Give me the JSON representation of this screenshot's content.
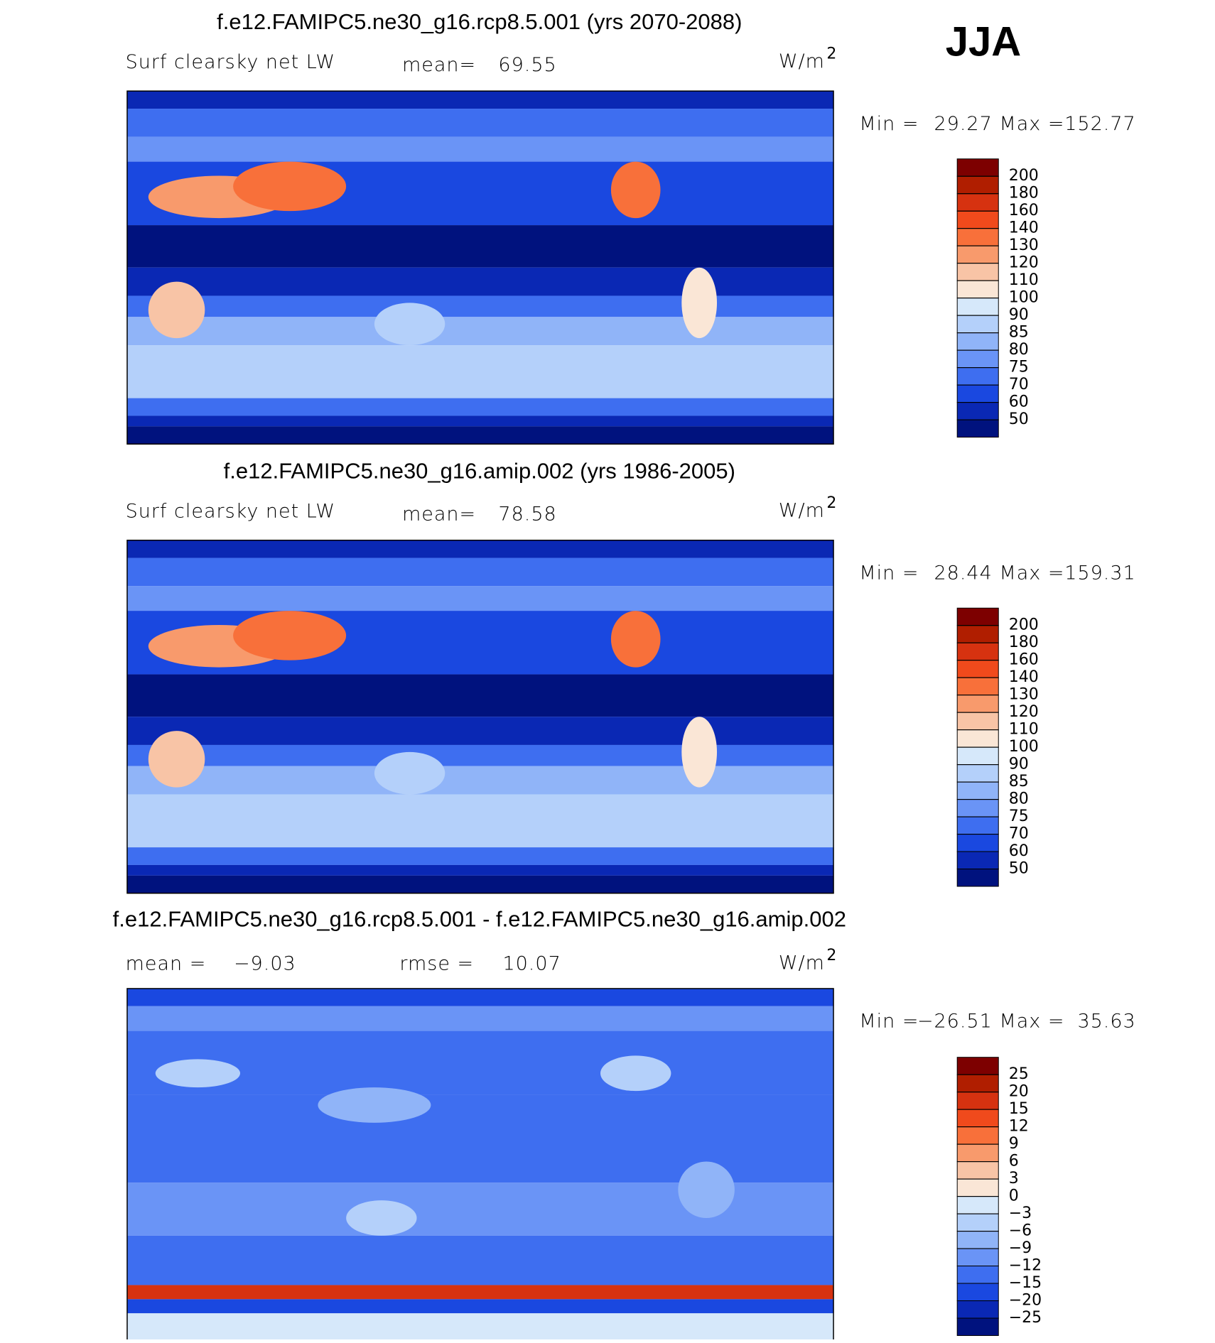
{
  "figure_label": "JJA",
  "panels": [
    {
      "title": "f.e12.FAMIPC5.ne30_g16.rcp8.5.001 (yrs 2070-2088)",
      "variable": "Surf clearsky net LW",
      "mean_label": "mean=",
      "mean": 69.55,
      "units": "W/m",
      "units_power": 2,
      "min_label": "Min =",
      "min": 29.27,
      "max_label": "Max =",
      "max": 152.77,
      "levels": [
        200,
        180,
        160,
        140,
        130,
        120,
        110,
        100,
        90,
        85,
        80,
        75,
        70,
        60,
        50
      ],
      "colors": [
        "#7d0000",
        "#b01e00",
        "#d63210",
        "#f04a1c",
        "#f8703a",
        "#f89a6c",
        "#f8c4a6",
        "#fae6d6",
        "#d6e8fa",
        "#b4d0fa",
        "#90b4f8",
        "#6a94f6",
        "#3e6ef0",
        "#1a48e0",
        "#0a28b4",
        "#00127e"
      ]
    },
    {
      "title": "f.e12.FAMIPC5.ne30_g16.amip.002 (yrs 1986-2005)",
      "variable": "Surf clearsky net LW",
      "mean_label": "mean=",
      "mean": 78.58,
      "units": "W/m",
      "units_power": 2,
      "min_label": "Min =",
      "min": 28.44,
      "max_label": "Max =",
      "max": 159.31,
      "levels": [
        200,
        180,
        160,
        140,
        130,
        120,
        110,
        100,
        90,
        85,
        80,
        75,
        70,
        60,
        50
      ],
      "colors": [
        "#7d0000",
        "#b01e00",
        "#d63210",
        "#f04a1c",
        "#f8703a",
        "#f89a6c",
        "#f8c4a6",
        "#fae6d6",
        "#d6e8fa",
        "#b4d0fa",
        "#90b4f8",
        "#6a94f6",
        "#3e6ef0",
        "#1a48e0",
        "#0a28b4",
        "#00127e"
      ]
    },
    {
      "title": "f.e12.FAMIPC5.ne30_g16.rcp8.5.001 - f.e12.FAMIPC5.ne30_g16.amip.002",
      "mean_label": "mean =",
      "mean": {
        "value": -9.03,
        "label": "−9.03"
      },
      "rmse_label": "rmse =",
      "rmse": 10.07,
      "units": "W/m",
      "units_power": 2,
      "min_label": "Min =",
      "min": {
        "value": -26.51,
        "label": "−26.51"
      },
      "max_label": "Max =",
      "max": 35.63,
      "levels": [
        25,
        20,
        15,
        12,
        9,
        6,
        3,
        0,
        {
          "value": -3,
          "label": "−3"
        },
        {
          "value": -6,
          "label": "−6"
        },
        {
          "value": -9,
          "label": "−9"
        },
        {
          "value": -12,
          "label": "−12"
        },
        {
          "value": -15,
          "label": "−15"
        },
        {
          "value": -20,
          "label": "−20"
        },
        {
          "value": -25,
          "label": "−25"
        }
      ],
      "colors": [
        "#7d0000",
        "#b01e00",
        "#d63210",
        "#f04a1c",
        "#f8703a",
        "#f89a6c",
        "#f8c4a6",
        "#fae6d6",
        "#d6e8fa",
        "#b4d0fa",
        "#90b4f8",
        "#6a94f6",
        "#3e6ef0",
        "#1a48e0",
        "#0a28b4",
        "#00127e"
      ]
    }
  ]
}
